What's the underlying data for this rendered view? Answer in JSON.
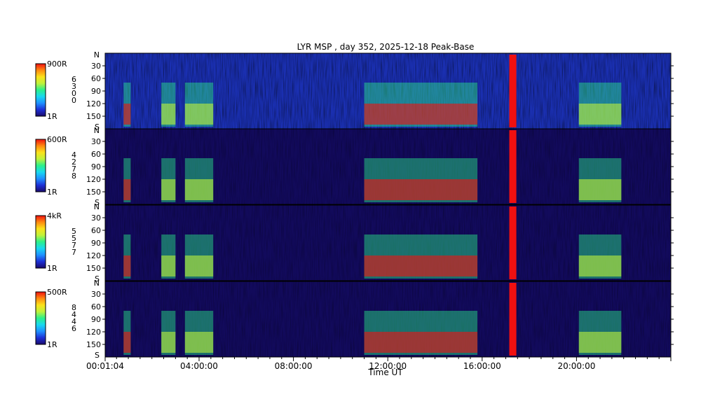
{
  "chart_data": {
    "type": "heatmap",
    "title": "LYR MSP , day 352, 2025-12-18 Peak-Base",
    "xlabel": "Time UT",
    "x_ticks": [
      "00:01:04",
      "04:00:00",
      "08:00:00",
      "12:00:00",
      "16:00:00",
      "20:00:00"
    ],
    "x_range_hours": [
      0.0178,
      24.0
    ],
    "y_range_deg": [
      0,
      180
    ],
    "y_ticks": [
      "30",
      "60",
      "90",
      "120",
      "150"
    ],
    "y_ends": {
      "top": "N",
      "bottom": "S"
    },
    "panels": [
      {
        "colorbar_max": "900R",
        "colorbar_min": "1R",
        "wavelength_digits": [
          "6",
          "3",
          "0",
          "0"
        ]
      },
      {
        "colorbar_max": "600R",
        "colorbar_min": "1R",
        "wavelength_digits": [
          "4",
          "2",
          "7",
          "8"
        ]
      },
      {
        "colorbar_max": "4kR",
        "colorbar_min": "1R",
        "wavelength_digits": [
          "5",
          "5",
          "7",
          "7"
        ]
      },
      {
        "colorbar_max": "500R",
        "colorbar_min": "1R",
        "wavelength_digits": [
          "8",
          "4",
          "4",
          "6"
        ]
      }
    ],
    "colormap": [
      "#1a0a6b",
      "#1d2fd6",
      "#1e90ff",
      "#18d8f0",
      "#2bf08a",
      "#bff23a",
      "#fbe21a",
      "#ff8a10",
      "#f01010"
    ],
    "activity_intervals_hours": [
      {
        "start": 0.8,
        "end": 1.1,
        "level": "high"
      },
      {
        "start": 2.4,
        "end": 3.0,
        "level": "medium"
      },
      {
        "start": 3.4,
        "end": 4.6,
        "level": "medium"
      },
      {
        "start": 11.0,
        "end": 15.8,
        "level": "high"
      },
      {
        "start": 17.15,
        "end": 17.45,
        "level": "saturated"
      },
      {
        "start": 20.1,
        "end": 21.9,
        "level": "medium"
      }
    ]
  }
}
